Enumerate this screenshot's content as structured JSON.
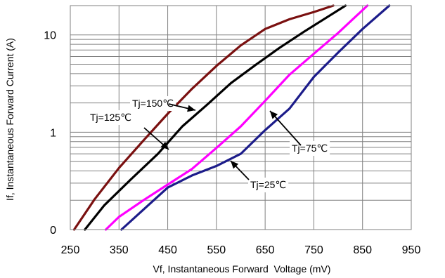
{
  "chart_data": {
    "type": "line",
    "title": "",
    "xlabel": "Vf, Instantaneous Forward  Voltage (mV)",
    "ylabel": "If, Instantaneous Forward Current (A)",
    "xlim": [
      250,
      950
    ],
    "ylim": [
      0.1,
      20
    ],
    "y_scale": "log",
    "grid": true,
    "x_ticks": [
      250,
      350,
      450,
      550,
      650,
      750,
      850,
      950
    ],
    "y_ticks": [
      {
        "value": 0.1,
        "label": "0"
      },
      {
        "value": 1,
        "label": "1"
      },
      {
        "value": 10,
        "label": "10"
      }
    ],
    "series": [
      {
        "name": "Tj=150℃",
        "color": "#7a1010",
        "points": [
          [
            258,
            0.1
          ],
          [
            300,
            0.205
          ],
          [
            350,
            0.43
          ],
          [
            400,
            0.82
          ],
          [
            450,
            1.55
          ],
          [
            500,
            2.8
          ],
          [
            550,
            4.8
          ],
          [
            600,
            7.8
          ],
          [
            650,
            11.5
          ],
          [
            700,
            14.5
          ],
          [
            750,
            17.2
          ],
          [
            790,
            20
          ]
        ]
      },
      {
        "name": "Tj=125℃",
        "color": "#000000",
        "points": [
          [
            280,
            0.1
          ],
          [
            320,
            0.178
          ],
          [
            375,
            0.33
          ],
          [
            430,
            0.6
          ],
          [
            480,
            1.15
          ],
          [
            530,
            1.9
          ],
          [
            580,
            3.2
          ],
          [
            630,
            4.9
          ],
          [
            680,
            7.4
          ],
          [
            730,
            10.8
          ],
          [
            780,
            15.5
          ],
          [
            815,
            20
          ]
        ]
      },
      {
        "name": "Tj=75℃",
        "color": "#ff00ff",
        "points": [
          [
            323,
            0.1
          ],
          [
            350,
            0.135
          ],
          [
            400,
            0.2
          ],
          [
            450,
            0.29
          ],
          [
            500,
            0.42
          ],
          [
            550,
            0.69
          ],
          [
            600,
            1.15
          ],
          [
            650,
            2.1
          ],
          [
            700,
            3.9
          ],
          [
            750,
            6.4
          ],
          [
            800,
            10.5
          ],
          [
            860,
            20
          ]
        ]
      },
      {
        "name": "Tj=25℃",
        "color": "#1c1c8a",
        "points": [
          [
            355,
            0.1
          ],
          [
            400,
            0.16
          ],
          [
            450,
            0.27
          ],
          [
            500,
            0.36
          ],
          [
            550,
            0.45
          ],
          [
            600,
            0.6
          ],
          [
            650,
            1.05
          ],
          [
            700,
            1.75
          ],
          [
            750,
            3.7
          ],
          [
            800,
            6.6
          ],
          [
            850,
            11.5
          ],
          [
            905,
            20
          ]
        ]
      }
    ],
    "annotations": [
      {
        "text": "Tj=150℃",
        "series": "Tj=150℃"
      },
      {
        "text": "Tj=125℃",
        "series": "Tj=125℃"
      },
      {
        "text": "Tj=75℃",
        "series": "Tj=75℃"
      },
      {
        "text": "Tj=25℃",
        "series": "Tj=25℃"
      }
    ]
  }
}
